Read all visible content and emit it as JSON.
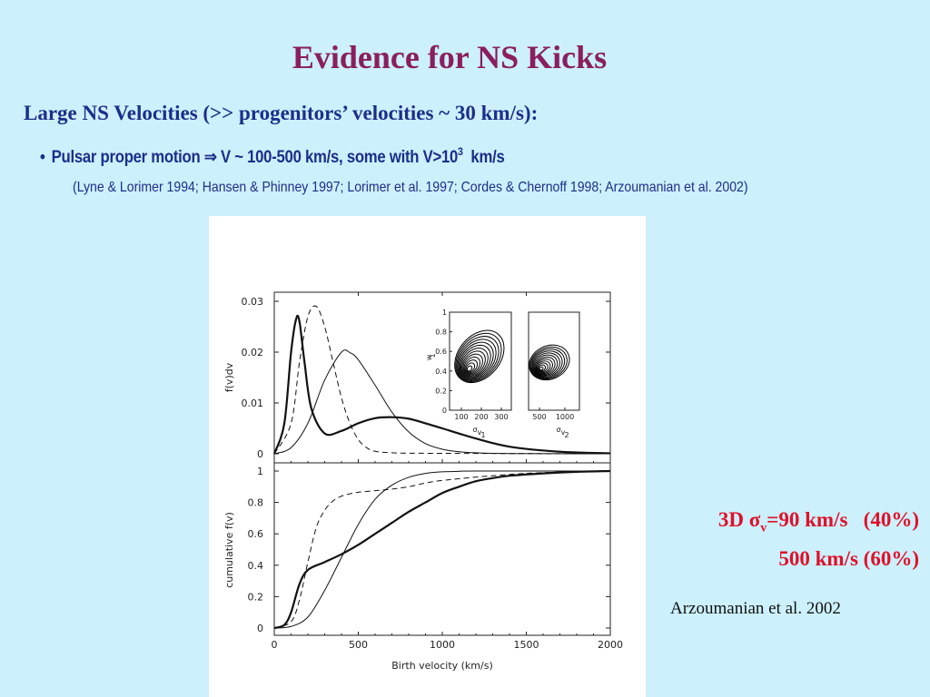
{
  "slide": {
    "title": "Evidence for NS Kicks",
    "subtitle": "Large NS Velocities (>> progenitors’ velocities ~ 30 km/s):",
    "bullet": {
      "marker": "•",
      "text_before": "Pulsar proper motion",
      "arrow": "⇒",
      "text_after": "V ~ 100-500 km/s, some with V>10",
      "superscript": "3",
      "unit": "km/s"
    },
    "references": "(Lyne & Lorimer 1994; Hansen & Phinney 1997; Lorimer et al. 1997; Cordes & Chernoff 1998; Arzoumanian et al. 2002)",
    "note": {
      "line1_prefix": "3D ",
      "sigma": "σ",
      "sigma_sub": "v",
      "line1_rest": "=90 km/s   (40%)",
      "line2": "500 km/s (60%)"
    },
    "credit": "Arzoumanian et al. 2002"
  },
  "chart_data": [
    {
      "type": "line",
      "panel": "top",
      "ylabel": "f(v)dv",
      "xlim": [
        0,
        2000
      ],
      "ylim": [
        0,
        0.033
      ],
      "yticks": [
        "0",
        "0.01",
        "0.02",
        "0.03"
      ],
      "series": [
        {
          "style": "solid-thick",
          "x": [
            0,
            60,
            100,
            130,
            150,
            180,
            220,
            300,
            400,
            500,
            600,
            700,
            800,
            900,
            1000,
            1200,
            1400,
            1700,
            2000
          ],
          "y": [
            0,
            0.006,
            0.02,
            0.0265,
            0.026,
            0.018,
            0.009,
            0.004,
            0.0045,
            0.006,
            0.007,
            0.0072,
            0.0069,
            0.006,
            0.005,
            0.003,
            0.0014,
            0.0004,
            0.0001
          ]
        },
        {
          "style": "dashed",
          "x": [
            0,
            100,
            150,
            200,
            250,
            300,
            350,
            400,
            450,
            500,
            550,
            600,
            700,
            900,
            2000
          ],
          "y": [
            0,
            0.006,
            0.018,
            0.027,
            0.029,
            0.025,
            0.018,
            0.011,
            0.006,
            0.0028,
            0.0012,
            0.0005,
            0.0002,
            0.0001,
            0
          ]
        },
        {
          "style": "solid-thin",
          "x": [
            0,
            100,
            200,
            300,
            400,
            450,
            500,
            600,
            700,
            800,
            900,
            1000,
            1100,
            1200,
            1400,
            2000
          ],
          "y": [
            0,
            0.0012,
            0.006,
            0.0145,
            0.02,
            0.0199,
            0.0185,
            0.0135,
            0.0082,
            0.0043,
            0.002,
            0.0009,
            0.0004,
            0.0002,
            5e-05,
            0
          ]
        }
      ]
    },
    {
      "type": "line",
      "panel": "bottom",
      "xlabel": "Birth velocity (km/s)",
      "ylabel": "cumulative f(v)",
      "xlim": [
        0,
        2000
      ],
      "ylim": [
        0,
        1
      ],
      "xticks": [
        "0",
        "500",
        "1000",
        "1500",
        "2000"
      ],
      "yticks": [
        "0",
        "0.2",
        "0.4",
        "0.6",
        "0.8",
        "1"
      ],
      "series": [
        {
          "style": "solid-thick",
          "x": [
            0,
            60,
            100,
            150,
            200,
            300,
            400,
            500,
            600,
            700,
            800,
            900,
            1000,
            1100,
            1200,
            1300,
            1400,
            1600,
            1800,
            2000
          ],
          "y": [
            0,
            0.02,
            0.1,
            0.28,
            0.37,
            0.42,
            0.47,
            0.53,
            0.6,
            0.67,
            0.74,
            0.8,
            0.86,
            0.9,
            0.935,
            0.955,
            0.97,
            0.985,
            0.995,
            1.0
          ]
        },
        {
          "style": "dashed",
          "x": [
            0,
            100,
            150,
            200,
            250,
            300,
            350,
            400,
            450,
            500,
            600,
            700,
            800,
            1000,
            1500,
            2000
          ],
          "y": [
            0,
            0.04,
            0.18,
            0.42,
            0.64,
            0.75,
            0.81,
            0.84,
            0.855,
            0.865,
            0.875,
            0.885,
            0.9,
            0.94,
            0.985,
            1.0
          ]
        },
        {
          "style": "solid-thin",
          "x": [
            0,
            100,
            200,
            300,
            400,
            500,
            600,
            700,
            800,
            900,
            1000,
            1100,
            1200,
            2000
          ],
          "y": [
            0,
            0.01,
            0.07,
            0.24,
            0.45,
            0.66,
            0.82,
            0.91,
            0.96,
            0.985,
            0.995,
            0.998,
            1.0,
            1.0
          ]
        }
      ]
    },
    {
      "type": "contour",
      "panel": "inset-left",
      "ylabel": "w",
      "ylabel_sub": "1",
      "xlabel": "σ",
      "xlabel_sub": "v",
      "xlabel_subsub": "1",
      "xticks": [
        "100",
        "200",
        "300"
      ],
      "yticks": [
        "0",
        "0.2",
        "0.4",
        "0.6",
        "0.8",
        "1"
      ]
    },
    {
      "type": "contour",
      "panel": "inset-right",
      "xlabel": "σ",
      "xlabel_sub": "v",
      "xlabel_subsub": "2",
      "xticks": [
        "500",
        "1000"
      ]
    }
  ]
}
